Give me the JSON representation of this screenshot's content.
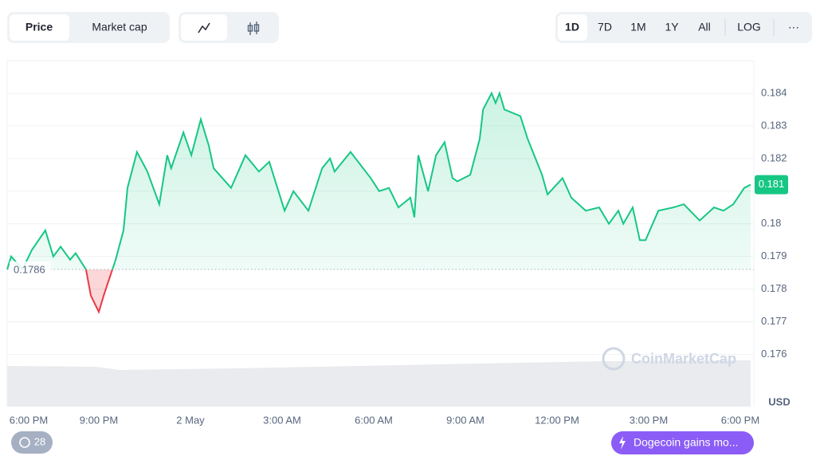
{
  "ui": {
    "tabs": [
      "Price",
      "Market cap"
    ],
    "ranges": [
      "1D",
      "7D",
      "1M",
      "1Y",
      "All"
    ],
    "log": "LOG",
    "more": "···",
    "currency": "USD",
    "watermark": "CoinMarketCap",
    "history_badge": 28,
    "news": "Dogecoin gains mo..."
  },
  "chart_data": {
    "type": "line",
    "x": [
      0,
      0.13,
      0.5,
      0.81,
      1.25,
      1.51,
      1.75,
      2.06,
      2.24,
      2.58,
      2.74,
      3.0,
      3.16,
      3.55,
      3.81,
      3.94,
      4.25,
      4.59,
      4.98,
      5.24,
      5.37,
      5.77,
      6.03,
      6.34,
      6.6,
      6.76,
      7.33,
      7.8,
      8.24,
      8.58,
      9.08,
      9.37,
      9.86,
      10.31,
      10.57,
      10.72,
      11.24,
      11.9,
      12.18,
      12.5,
      12.81,
      13.2,
      13.33,
      13.46,
      13.78,
      14.04,
      14.32,
      14.58,
      14.74,
      15.16,
      15.47,
      15.58,
      15.86,
      15.99,
      16.12,
      16.28,
      16.8,
      17.04,
      17.51,
      17.69,
      18.18,
      18.47,
      18.94,
      19.38,
      19.7,
      20.01,
      20.17,
      20.48,
      20.71,
      20.9,
      21.32,
      21.81,
      22.15,
      22.67,
      23.14,
      23.45,
      23.77,
      24.13,
      24.34
    ],
    "series": [
      {
        "name": "Price",
        "color": "#16c784",
        "values": [
          0.1786,
          0.179,
          0.1786,
          0.1792,
          0.1798,
          0.179,
          0.1793,
          0.1789,
          0.1791,
          0.1786,
          0.1778,
          0.1773,
          0.1778,
          0.1789,
          0.1798,
          0.1811,
          0.1822,
          0.1816,
          0.1806,
          0.1821,
          0.1817,
          0.1828,
          0.1821,
          0.1832,
          0.1824,
          0.1817,
          0.1811,
          0.1821,
          0.1816,
          0.1819,
          0.1804,
          0.181,
          0.1804,
          0.1817,
          0.182,
          0.1816,
          0.1822,
          0.1814,
          0.181,
          0.1811,
          0.1805,
          0.1808,
          0.1802,
          0.1821,
          0.181,
          0.1821,
          0.1825,
          0.1814,
          0.1813,
          0.1815,
          0.1826,
          0.1835,
          0.184,
          0.1837,
          0.184,
          0.1835,
          0.1833,
          0.1826,
          0.1815,
          0.1809,
          0.1814,
          0.1808,
          0.1804,
          0.1805,
          0.18,
          0.1804,
          0.18,
          0.1805,
          0.1795,
          0.1795,
          0.1804,
          0.1805,
          0.1806,
          0.1801,
          0.1805,
          0.1804,
          0.1806,
          0.1811,
          0.1812
        ]
      }
    ],
    "negative_color": "#ea3943",
    "baseline": 0.1786,
    "current_price_label": "0.181",
    "xlim": [
      0,
      24.34
    ],
    "xticks": [
      {
        "value": 0,
        "label": "6:00 PM"
      },
      {
        "value": 3,
        "label": "9:00 PM"
      },
      {
        "value": 6,
        "label": "2 May"
      },
      {
        "value": 9,
        "label": "3:00 AM"
      },
      {
        "value": 12,
        "label": "6:00 AM"
      },
      {
        "value": 15,
        "label": "9:00 AM"
      },
      {
        "value": 18,
        "label": "12:00 PM"
      },
      {
        "value": 21,
        "label": "3:00 PM"
      },
      {
        "value": 24,
        "label": "6:00 PM"
      }
    ],
    "ylim": [
      0.1744,
      0.185
    ],
    "yticks": [
      0.176,
      0.177,
      0.178,
      0.179,
      0.18,
      0.181,
      0.182,
      0.183,
      0.184
    ],
    "grid": true
  }
}
